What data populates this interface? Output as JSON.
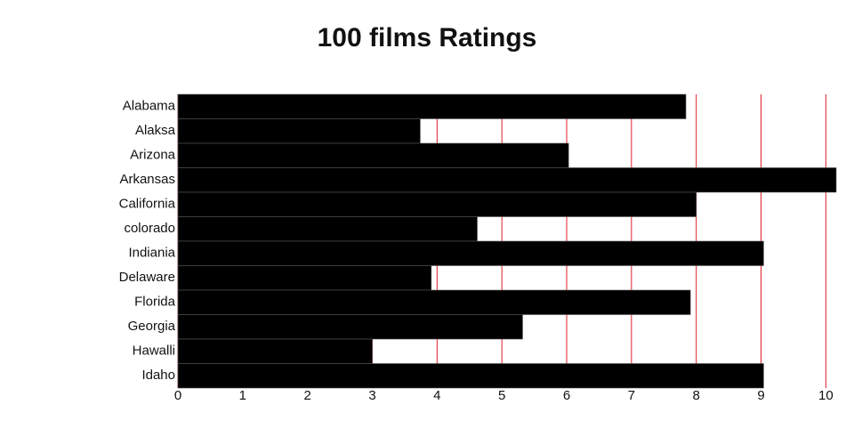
{
  "chart_data": {
    "type": "hbar",
    "title": "100 films Ratings",
    "categories": [
      "Alabama",
      "Alaksa",
      "Arizona",
      "Arkansas",
      "California",
      "colorado",
      "Indiania",
      "Delaware",
      "Florida",
      "Georgia",
      "Hawalli",
      "Idaho"
    ],
    "values": [
      7.84,
      3.74,
      6.03,
      10.16,
      8.0,
      4.62,
      9.04,
      3.91,
      7.91,
      5.32,
      3.0,
      9.04
    ],
    "color": "#000000",
    "grid_color": "#e0202a",
    "xlim": [
      0,
      10.16
    ],
    "xticks": [
      0,
      1,
      2,
      3,
      4,
      5,
      6,
      7,
      8,
      9,
      10
    ],
    "grid": true
  }
}
